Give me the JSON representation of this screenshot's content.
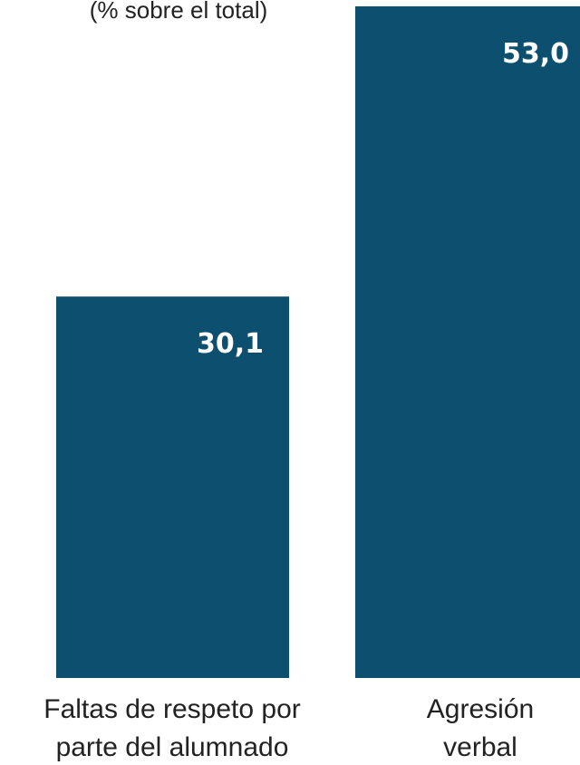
{
  "chart_data": {
    "type": "bar",
    "subtitle": "(% sobre el total)",
    "categories": [
      [
        "Faltas de respeto por",
        "parte del alumnado"
      ],
      [
        "Agresión",
        "verbal"
      ]
    ],
    "values": [
      30.1,
      53.0
    ],
    "value_labels": [
      "30,1",
      "53,0"
    ],
    "bar_color": "#0d4f6e",
    "ylim": [
      0,
      53.5
    ],
    "grid": false
  }
}
